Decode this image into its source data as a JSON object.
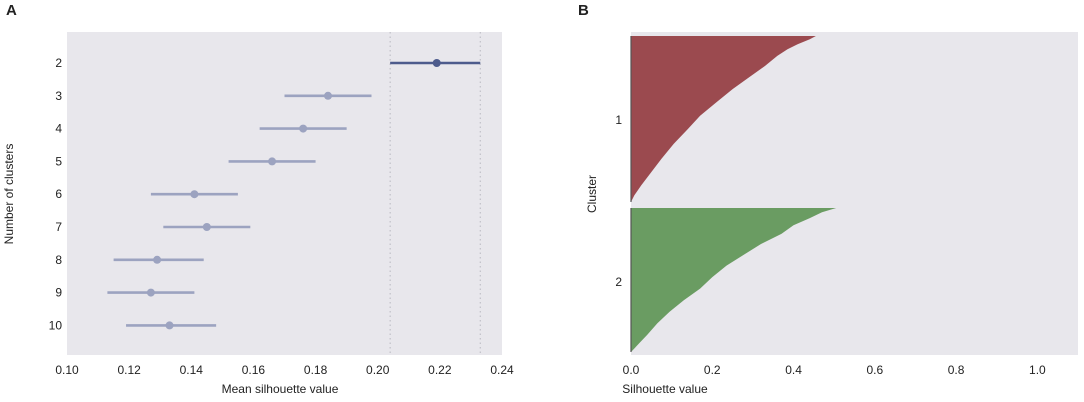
{
  "chart_data": [
    {
      "panel": "A",
      "type": "scatter",
      "subtype": "point-with-interval",
      "xlabel": "Mean silhouette value",
      "ylabel": "Number of clusters",
      "xlim": [
        0.1,
        0.24
      ],
      "xticks": [
        "0.10",
        "0.12",
        "0.14",
        "0.16",
        "0.18",
        "0.20",
        "0.22",
        "0.24"
      ],
      "grid": false,
      "reference_lines": [
        0.204,
        0.233
      ],
      "colors": {
        "background": "#e8e7ec",
        "highlight": "#4d5b8c",
        "default": "#9ca3c0",
        "reference": "#b8b8c0"
      },
      "points": [
        {
          "k": "2",
          "mean": 0.219,
          "low": 0.204,
          "high": 0.233,
          "highlight": true
        },
        {
          "k": "3",
          "mean": 0.184,
          "low": 0.17,
          "high": 0.198
        },
        {
          "k": "4",
          "mean": 0.176,
          "low": 0.162,
          "high": 0.19
        },
        {
          "k": "5",
          "mean": 0.166,
          "low": 0.152,
          "high": 0.18
        },
        {
          "k": "6",
          "mean": 0.141,
          "low": 0.127,
          "high": 0.155
        },
        {
          "k": "7",
          "mean": 0.145,
          "low": 0.131,
          "high": 0.159
        },
        {
          "k": "8",
          "mean": 0.129,
          "low": 0.115,
          "high": 0.144
        },
        {
          "k": "9",
          "mean": 0.127,
          "low": 0.113,
          "high": 0.141
        },
        {
          "k": "10",
          "mean": 0.133,
          "low": 0.119,
          "high": 0.148
        }
      ]
    },
    {
      "panel": "B",
      "type": "area",
      "subtype": "silhouette-profile",
      "xlabel": "Silhouette value",
      "ylabel": "Cluster",
      "xlim": [
        0.0,
        1.1
      ],
      "xticks": [
        "0.0",
        "0.2",
        "0.4",
        "0.6",
        "0.8",
        "1.0"
      ],
      "grid": false,
      "colors": {
        "background": "#e8e7ec"
      },
      "series": [
        {
          "label": "1",
          "color": "#9b4a4f",
          "max_value": 0.455,
          "profile": [
            [
              0.0,
              0.455
            ],
            [
              0.02,
              0.44
            ],
            [
              0.05,
              0.41
            ],
            [
              0.08,
              0.385
            ],
            [
              0.12,
              0.36
            ],
            [
              0.18,
              0.33
            ],
            [
              0.25,
              0.29
            ],
            [
              0.32,
              0.25
            ],
            [
              0.4,
              0.21
            ],
            [
              0.48,
              0.17
            ],
            [
              0.56,
              0.14
            ],
            [
              0.65,
              0.105
            ],
            [
              0.74,
              0.075
            ],
            [
              0.82,
              0.05
            ],
            [
              0.9,
              0.025
            ],
            [
              0.96,
              0.008
            ],
            [
              1.0,
              0.0
            ]
          ]
        },
        {
          "label": "2",
          "color": "#6a9c62",
          "max_value": 0.505,
          "profile": [
            [
              0.0,
              0.505
            ],
            [
              0.03,
              0.47
            ],
            [
              0.07,
              0.44
            ],
            [
              0.12,
              0.4
            ],
            [
              0.18,
              0.37
            ],
            [
              0.25,
              0.32
            ],
            [
              0.32,
              0.28
            ],
            [
              0.4,
              0.235
            ],
            [
              0.48,
              0.2
            ],
            [
              0.56,
              0.17
            ],
            [
              0.64,
              0.13
            ],
            [
              0.72,
              0.095
            ],
            [
              0.8,
              0.065
            ],
            [
              0.88,
              0.04
            ],
            [
              0.94,
              0.02
            ],
            [
              1.0,
              0.0
            ]
          ]
        }
      ]
    }
  ]
}
